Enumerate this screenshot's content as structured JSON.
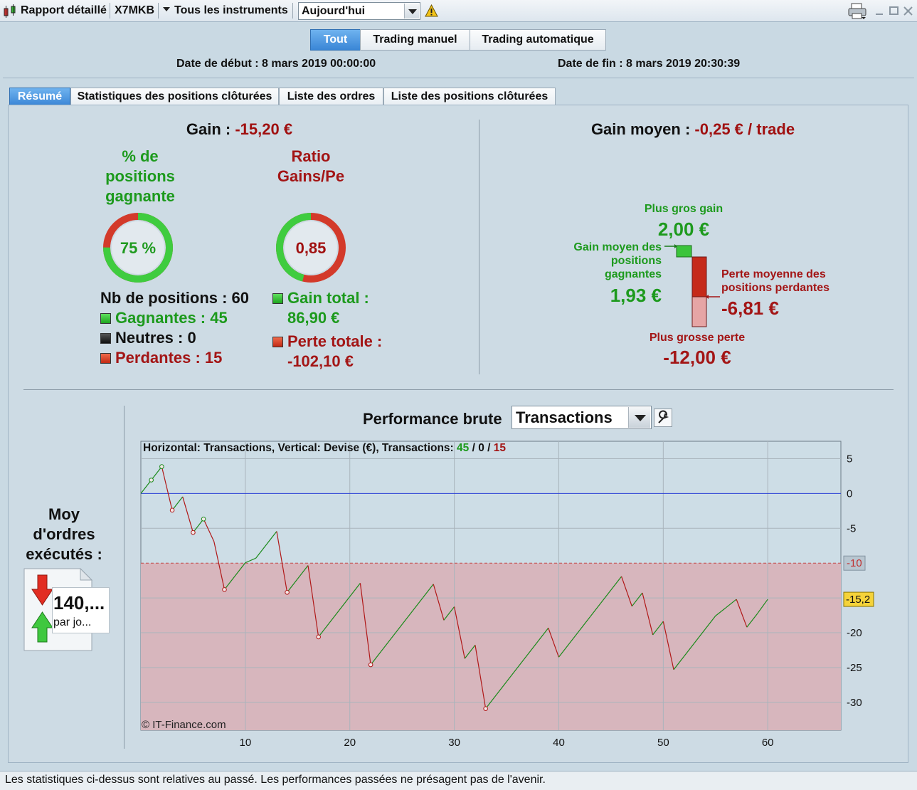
{
  "toolbar": {
    "title": "Rapport détaillé",
    "instrument": "X7MKB",
    "instruments_menu": "Tous les instruments",
    "period_value": "Aujourd'hui"
  },
  "modes": [
    {
      "label": "Tout",
      "active": true
    },
    {
      "label": "Trading manuel",
      "active": false
    },
    {
      "label": "Trading automatique",
      "active": false
    }
  ],
  "dates": {
    "start": "Date de début : 8 mars 2019 00:00:00",
    "end": "Date de fin : 8 mars 2019 20:30:39"
  },
  "tabs": [
    {
      "label": "Résumé",
      "active": true
    },
    {
      "label": "Statistiques des positions clôturées",
      "active": false
    },
    {
      "label": "Liste des ordres",
      "active": false
    },
    {
      "label": "Liste des positions clôturées",
      "active": false
    }
  ],
  "summary": {
    "gain_label": "Gain : ",
    "gain_value": "-15,20 €",
    "win_pct_title_1": "% de",
    "win_pct_title_2": "positions",
    "win_pct_title_3": "gagnante",
    "win_pct_value": "75 %",
    "win_pct_fraction": 0.75,
    "ratio_title_1": "Ratio",
    "ratio_title_2": "Gains/Pe",
    "ratio_value": "0,85",
    "ratio_fraction": 0.46,
    "nb_positions": "Nb de positions : 60",
    "gagnantes": "Gagnantes : 45",
    "neutres": "Neutres : 0",
    "perdantes": "Perdantes : 15",
    "gain_total_label": "Gain total :",
    "gain_total_value": "86,90 €",
    "perte_totale_label": "Perte totale :",
    "perte_totale_value": "-102,10 €",
    "avg_gain_label": "Gain moyen : ",
    "avg_gain_value": "-0,25 € / trade",
    "max_gain_label": "Plus gros gain",
    "max_gain_value": "2,00 €",
    "avg_win_label_1": "Gain moyen des",
    "avg_win_label_2": "positions",
    "avg_win_label_3": "gagnantes",
    "avg_win_value": "1,93 €",
    "avg_loss_label_1": "Perte moyenne des",
    "avg_loss_label_2": "positions perdantes",
    "avg_loss_value": "-6,81 €",
    "max_loss_label": "Plus grosse perte",
    "max_loss_value": "-12,00 €"
  },
  "orders": {
    "title_1": "Moy",
    "title_2": "d'ordres",
    "title_3": "exécutés :",
    "value": "140,...",
    "unit": "par jo..."
  },
  "performance": {
    "title": "Performance brute",
    "mode_value": "Transactions",
    "info_prefix": "Horizontal: Transactions, Vertical: Devise (€), Transactions: ",
    "info_wins": "45",
    "info_sep1": " / ",
    "info_neutral": "0",
    "info_sep2": " / ",
    "info_losses": "15",
    "watermark": "© IT-Finance.com",
    "threshold_label": "-10",
    "current_label": "-15,2"
  },
  "chart_data": {
    "type": "line",
    "xlabel": "",
    "ylabel": "",
    "xlim": [
      0,
      67
    ],
    "ylim": [
      -34,
      7.5
    ],
    "x_ticks": [
      10,
      20,
      30,
      40,
      50,
      60
    ],
    "y_ticks": [
      5,
      0,
      -5,
      -20,
      -25,
      -30
    ],
    "threshold": -10,
    "current": -15.2,
    "grid": true,
    "colors": {
      "up": "#1a8a1a",
      "down": "#b01818",
      "zero_line": "#2a3fd6",
      "loss_zone": "#d7b6bd"
    },
    "series": [
      {
        "x": [
          0,
          1,
          2,
          3,
          4,
          5,
          6,
          7,
          8,
          9,
          10,
          11,
          12,
          13,
          14,
          15,
          16,
          17,
          18,
          19,
          20,
          21,
          22,
          23,
          24,
          25,
          26,
          27,
          28,
          29,
          30,
          31,
          32,
          33,
          34,
          35,
          36,
          37,
          38,
          39,
          40,
          41,
          42,
          43,
          44,
          45,
          46,
          47,
          48,
          49,
          50,
          51,
          52,
          53,
          54,
          55,
          56,
          57,
          58,
          59,
          60
        ],
        "y": [
          0,
          1.93,
          3.86,
          -2.4,
          -0.47,
          -5.6,
          -3.67,
          -6.9,
          -13.8,
          -11.87,
          -9.94,
          -9.3,
          -7.37,
          -5.44,
          -14.2,
          -12.27,
          -10.34,
          -20.6,
          -18.67,
          -16.74,
          -14.81,
          -12.88,
          -24.6,
          -22.67,
          -20.74,
          -18.81,
          -16.88,
          -14.95,
          -13.02,
          -18.2,
          -16.27,
          -23.7,
          -21.77,
          -30.9,
          -28.97,
          -27.04,
          -25.11,
          -23.18,
          -21.25,
          -19.32,
          -23.5,
          -21.57,
          -19.64,
          -17.71,
          -15.78,
          -13.85,
          -11.92,
          -16.2,
          -14.27,
          -20.3,
          -18.37,
          -25.3,
          -23.37,
          -21.44,
          -19.51,
          -17.58,
          -16.4,
          -15.2,
          -19.2,
          -17.27,
          -15.2
        ],
        "markers": [
          1,
          2,
          3,
          5,
          6,
          8,
          14,
          17,
          22,
          33
        ]
      }
    ]
  }
}
